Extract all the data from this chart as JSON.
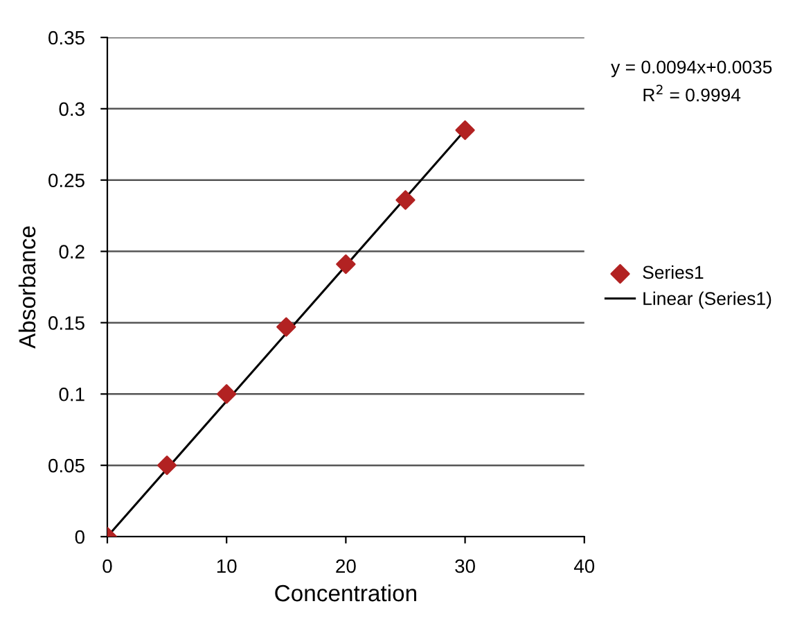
{
  "chart_data": {
    "type": "scatter",
    "xlabel": "Concentration",
    "ylabel": "Absorbance",
    "xlim": [
      0,
      40
    ],
    "xticks": [
      0,
      10,
      20,
      30,
      40
    ],
    "ylim": [
      0,
      0.35
    ],
    "yticks": [
      0,
      0.05,
      0.1,
      0.15,
      0.2,
      0.25,
      0.3,
      0.35
    ],
    "grid": "y",
    "legend": "right",
    "series": [
      {
        "name": "Series1",
        "color": "#b22222",
        "marker": "diamond",
        "x": [
          0,
          5,
          10,
          15,
          20,
          25,
          30
        ],
        "values": [
          0,
          0.05,
          0.1,
          0.147,
          0.191,
          0.236,
          0.285
        ]
      },
      {
        "name": "Linear (Series1)",
        "type": "line",
        "color": "#000000",
        "x": [
          0,
          30
        ],
        "values": [
          0,
          0.285
        ],
        "marker": "none",
        "line_style": "solid"
      }
    ],
    "annotations": [
      "y = 0.0094x+0.0035",
      "R$^{2}$ = 0.9994"
    ]
  }
}
